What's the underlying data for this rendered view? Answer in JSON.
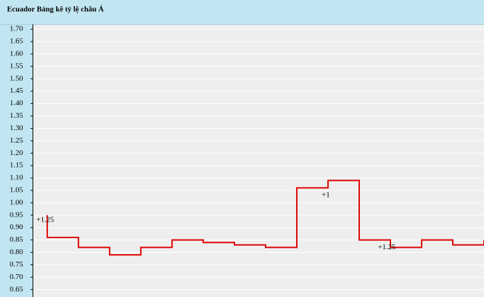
{
  "chart_data": {
    "type": "step",
    "title": "Ecuador Bảng kê tỷ lệ châu Á",
    "x": [
      0,
      0,
      1,
      2,
      3,
      4,
      5,
      6,
      7,
      8,
      9,
      10,
      11,
      12,
      13,
      14
    ],
    "series": [
      {
        "color": "#e00000",
        "values": [
          0.95,
          0.86,
          0.82,
          0.79,
          0.82,
          0.85,
          0.84,
          0.83,
          0.82,
          1.06,
          1.09,
          0.85,
          0.82,
          0.85,
          0.83,
          0.85
        ]
      }
    ],
    "xlim": [
      -0.47,
      14
    ],
    "ylim": [
      0.62,
      1.72
    ],
    "yticks": [
      {
        "value": 0.65,
        "label": "0.65"
      },
      {
        "value": 0.7,
        "label": "0.70"
      },
      {
        "value": 0.75,
        "label": "0.75"
      },
      {
        "value": 0.8,
        "label": "0.80"
      },
      {
        "value": 0.85,
        "label": "0.85"
      },
      {
        "value": 0.9,
        "label": "0.90"
      },
      {
        "value": 0.95,
        "label": "0.95"
      },
      {
        "value": 1.0,
        "label": "1.00"
      },
      {
        "value": 1.05,
        "label": "1.05"
      },
      {
        "value": 1.1,
        "label": "1.10"
      },
      {
        "value": 1.15,
        "label": "1.15"
      },
      {
        "value": 1.2,
        "label": "1.20"
      },
      {
        "value": 1.25,
        "label": "1.25"
      },
      {
        "value": 1.3,
        "label": "1.30"
      },
      {
        "value": 1.35,
        "label": "1.35"
      },
      {
        "value": 1.4,
        "label": "1.40"
      },
      {
        "value": 1.45,
        "label": "1.45"
      },
      {
        "value": 1.5,
        "label": "1.50"
      },
      {
        "value": 1.55,
        "label": "1.55"
      },
      {
        "value": 1.6,
        "label": "1.60"
      },
      {
        "value": 1.65,
        "label": "1.65"
      },
      {
        "value": 1.7,
        "label": "1.70"
      }
    ],
    "grid": true,
    "annotations": [
      {
        "text": "+1.25",
        "x": -0.35,
        "y": 0.93
      },
      {
        "text": "+1",
        "x": 8.8,
        "y": 1.03
      },
      {
        "text": "+1.25",
        "x": 10.6,
        "y": 0.82
      }
    ]
  }
}
